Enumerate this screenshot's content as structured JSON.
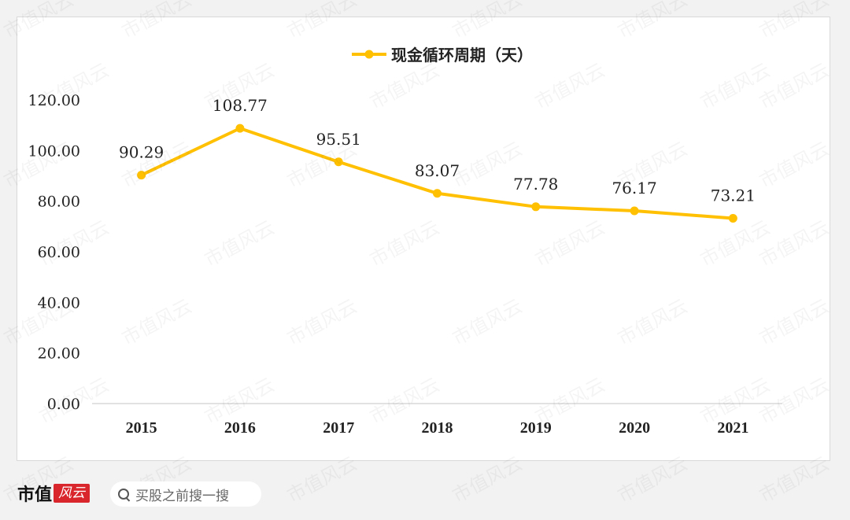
{
  "watermark": "市值风云",
  "chart_data": {
    "type": "line",
    "title": "",
    "xlabel": "",
    "ylabel": "",
    "categories": [
      "2015",
      "2016",
      "2017",
      "2018",
      "2019",
      "2020",
      "2021"
    ],
    "series": [
      {
        "name": "现金循环周期（天）",
        "values": [
          90.29,
          108.77,
          95.51,
          83.07,
          77.78,
          76.17,
          73.21
        ],
        "labels": [
          "90.29",
          "108.77",
          "95.51",
          "83.07",
          "77.78",
          "76.17",
          "73.21"
        ]
      }
    ],
    "ylim": [
      0,
      120
    ],
    "yticks": [
      0,
      20,
      40,
      60,
      80,
      100,
      120
    ],
    "ytick_labels": [
      "0.00",
      "20.00",
      "40.00",
      "60.00",
      "80.00",
      "100.00",
      "120.00"
    ],
    "grid": false,
    "legend": "top-center",
    "colors": {
      "series": "#FFC000",
      "axis": "#d9d9d9",
      "text": "#222222"
    }
  },
  "footer": {
    "brand_text": "市值",
    "brand_logo_text": "风云",
    "search_placeholder": "买股之前搜一搜",
    "search_icon": "search-icon"
  }
}
